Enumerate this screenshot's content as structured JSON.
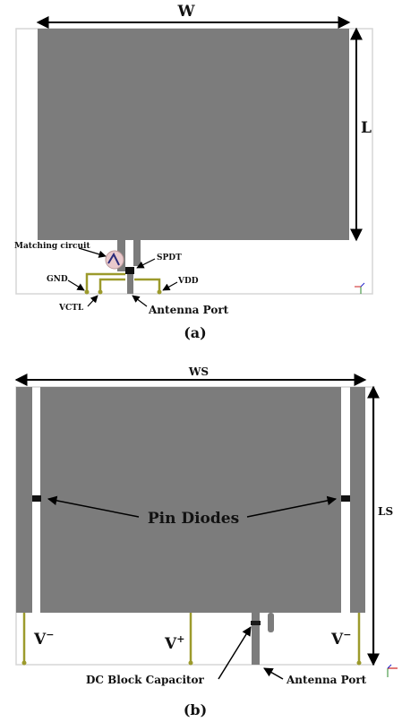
{
  "colors": {
    "patch": "#7c7c7c",
    "board_outline": "#d6d6d6",
    "wire": "#9c9a2c",
    "arrow": "#000000"
  },
  "figure_a": {
    "dim_width": "W",
    "dim_length": "L",
    "label_matching": "Matching circuit",
    "label_spdt": "SPDT",
    "label_gnd": "GND",
    "label_vdd": "VDD",
    "label_vctl": "VCTL",
    "label_port": "Antenna Port",
    "caption": "(a)"
  },
  "figure_b": {
    "dim_width": "WS",
    "dim_length": "LS",
    "label_diodes": "Pin Diodes",
    "label_vminus_left": "V−",
    "label_vplus": "V+",
    "label_vminus_right": "V−",
    "label_capacitor": "DC Block Capacitor",
    "label_port": "Antenna Port",
    "caption": "(b)"
  }
}
